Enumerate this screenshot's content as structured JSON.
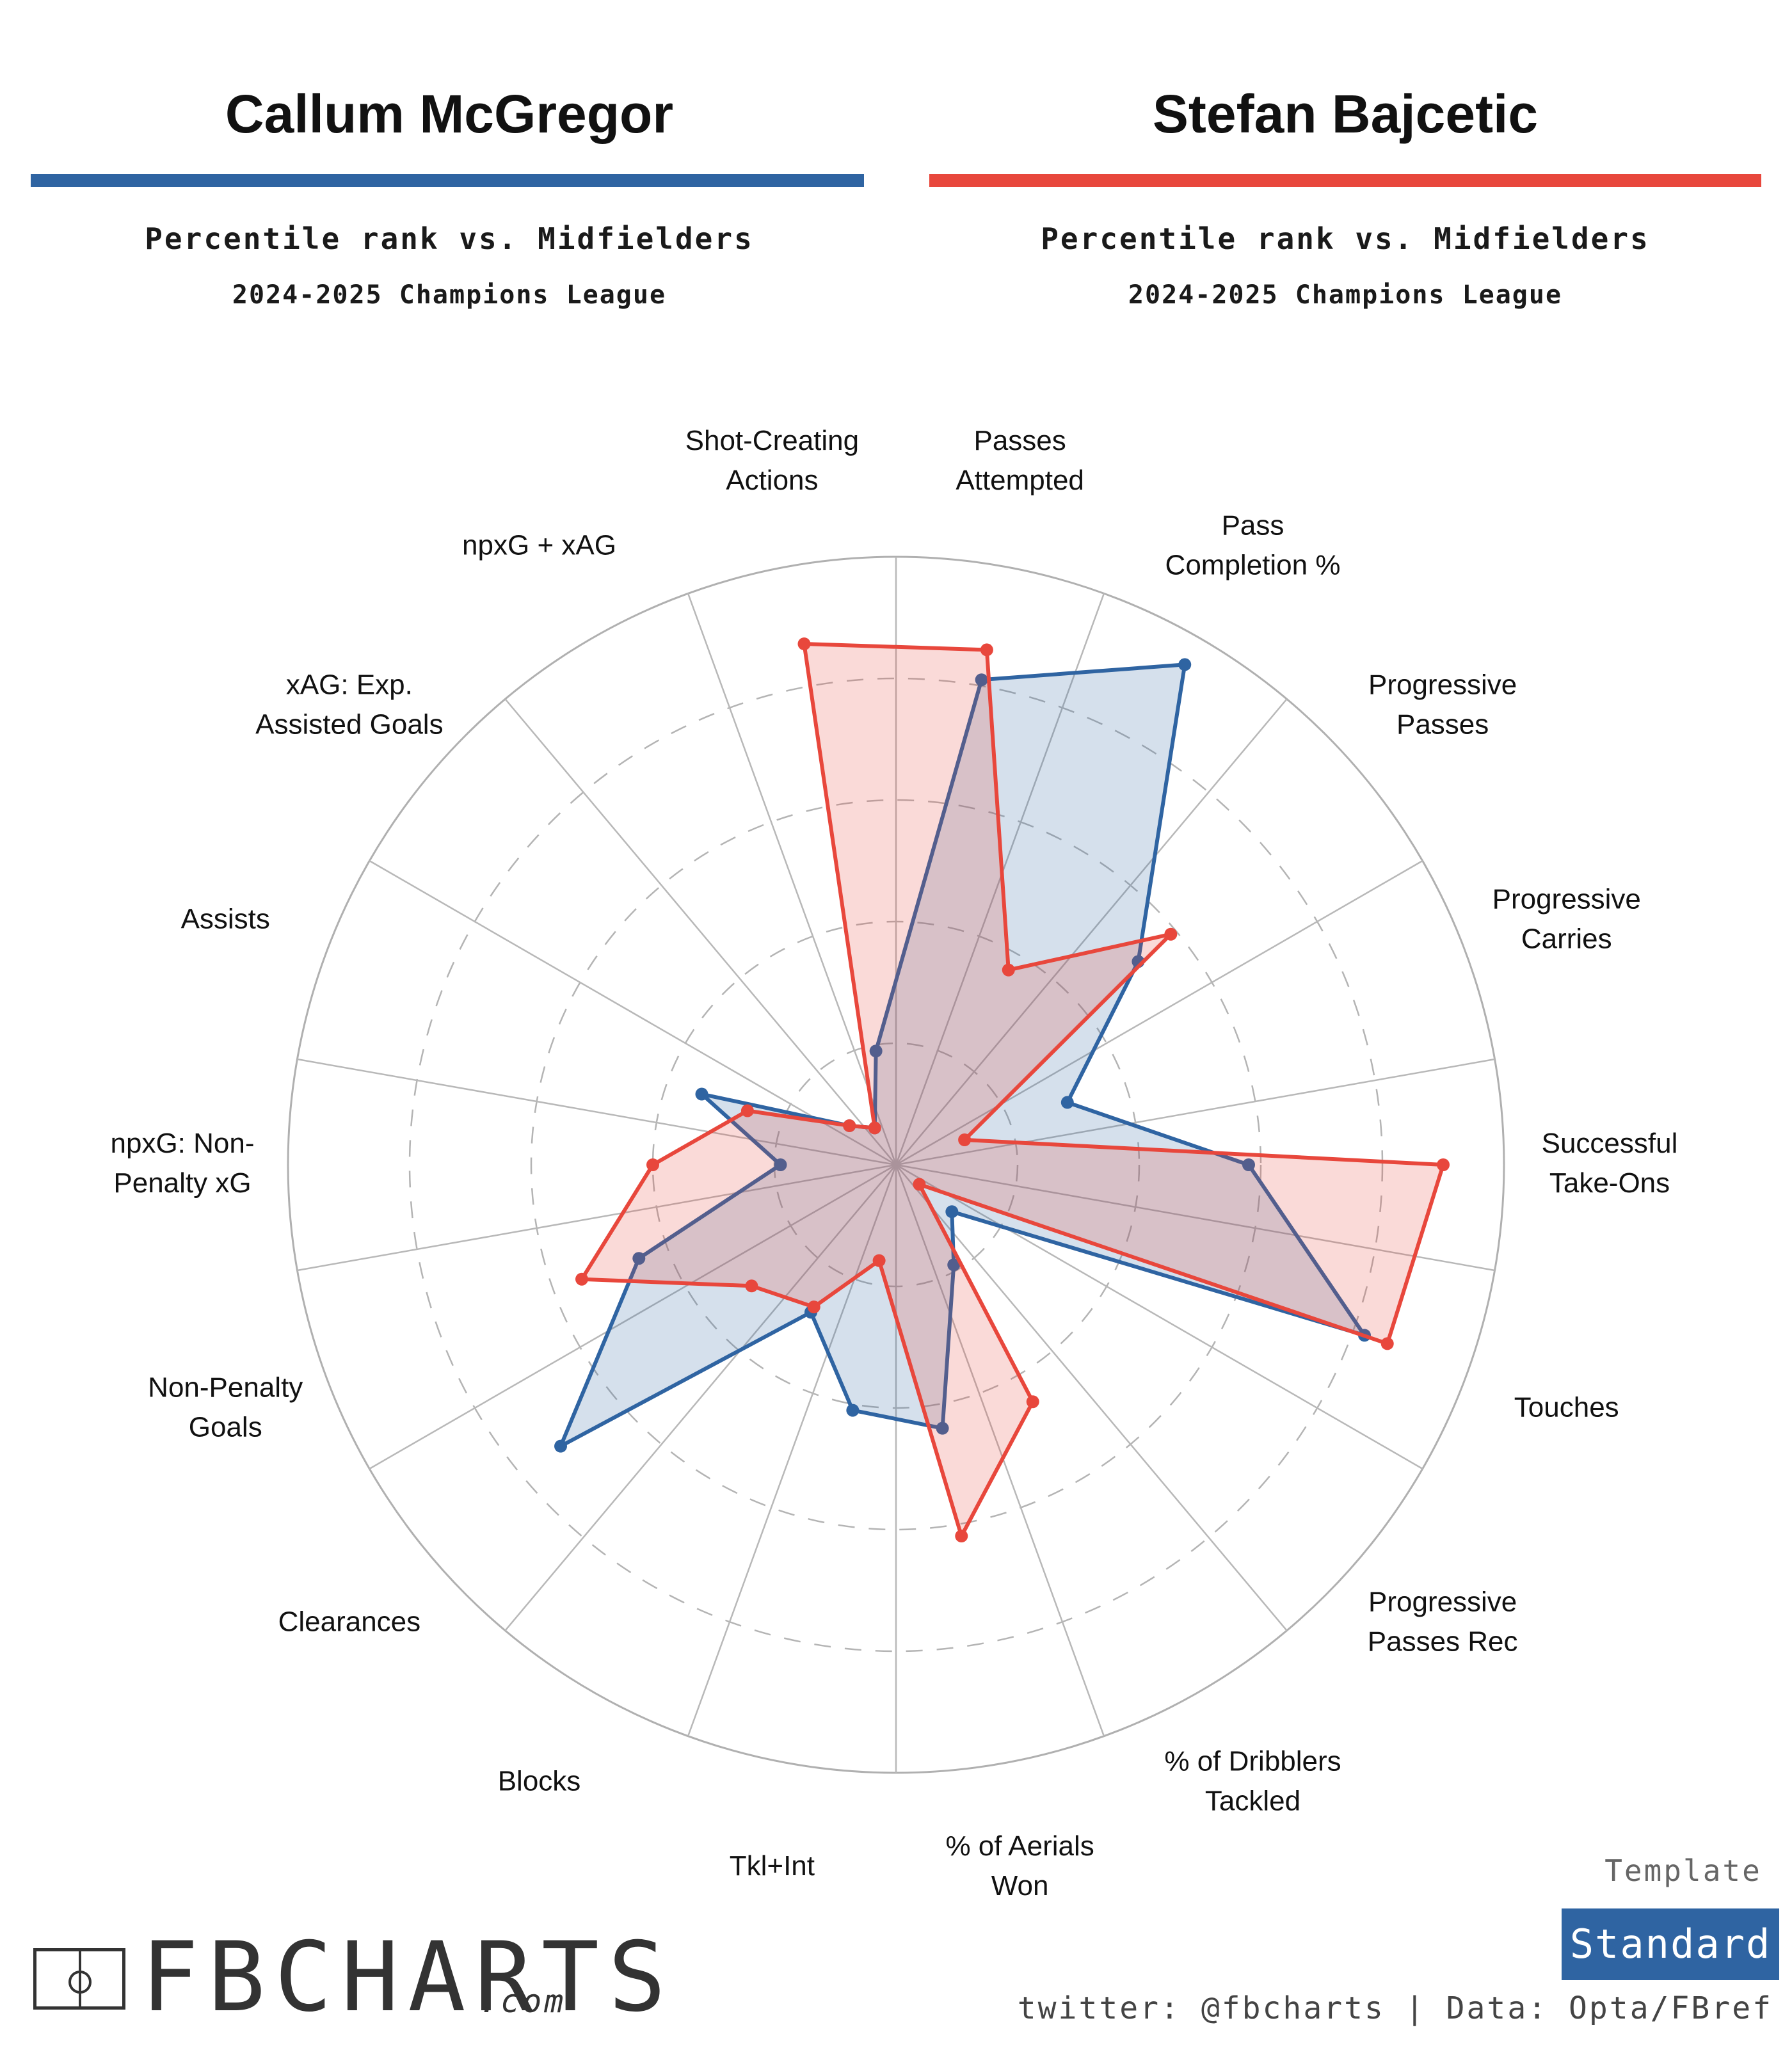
{
  "players": [
    {
      "name": "Callum McGregor",
      "color": "#2f64a2",
      "subtitle": "Percentile rank vs. Midfielders",
      "season": "2024-2025 Champions League"
    },
    {
      "name": "Stefan Bajcetic",
      "color": "#e8473c",
      "subtitle": "Percentile rank vs. Midfielders",
      "season": "2024-2025 Champions League"
    }
  ],
  "chart_data": {
    "type": "radar",
    "scale": [
      0,
      100
    ],
    "grid": true,
    "categories": [
      "Passes Attempted",
      "Pass Completion %",
      "Progressive Passes",
      "Progressive Carries",
      "Successful Take-Ons",
      "Touches",
      "Progressive Passes Rec",
      "% of Dribblers Tackled",
      "% of Aerials Won",
      "Tkl+Int",
      "Blocks",
      "Clearances",
      "Non-Penalty Goals",
      "npxG: Non-Penalty xG",
      "Assists",
      "xAG: Exp. Assisted Goals",
      "npxG + xAG",
      "Shot-Creating Actions"
    ],
    "label_lines": [
      [
        "Passes",
        "Attempted"
      ],
      [
        "Pass",
        "Completion %"
      ],
      [
        "Progressive",
        "Passes"
      ],
      [
        "Progressive",
        "Carries"
      ],
      [
        "Successful",
        "Take-Ons"
      ],
      [
        "Touches"
      ],
      [
        "Progressive",
        "Passes Rec"
      ],
      [
        "% of Dribblers",
        "Tackled"
      ],
      [
        "% of Aerials",
        "Won"
      ],
      [
        "Tkl+Int"
      ],
      [
        "Blocks"
      ],
      [
        "Clearances"
      ],
      [
        "Non-Penalty",
        "Goals"
      ],
      [
        "npxG: Non-",
        "Penalty xG"
      ],
      [
        "Assists"
      ],
      [
        "xAG: Exp.",
        "Assisted Goals"
      ],
      [
        "npxG + xAG"
      ],
      [
        "Shot-Creating",
        "Actions"
      ]
    ],
    "series": [
      {
        "name": "Callum McGregor",
        "color": "#2f64a2",
        "values": [
          81,
          95,
          52,
          30,
          58,
          82,
          12,
          19,
          44,
          41,
          28,
          72,
          45,
          19,
          34,
          10,
          7,
          19
        ]
      },
      {
        "name": "Stefan Bajcetic",
        "color": "#e8473c",
        "values": [
          86,
          37,
          59,
          12,
          90,
          86,
          5,
          45,
          62,
          16,
          27,
          31,
          55,
          40,
          26,
          10,
          7,
          87
        ]
      }
    ]
  },
  "template": {
    "label": "Template",
    "value": "Standard"
  },
  "logo": {
    "text": "FBCHARTS",
    "suffix": ".com"
  },
  "credit": "twitter: @fbcharts | Data: Opta/FBref"
}
